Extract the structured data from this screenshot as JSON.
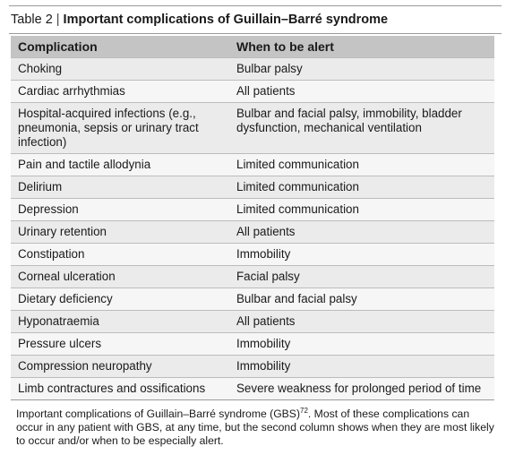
{
  "title": {
    "prefix": "Table 2",
    "separator": "|",
    "main": "Important complications of Guillain–Barré syndrome"
  },
  "table": {
    "headers": [
      "Complication",
      "When to be alert"
    ],
    "rows": [
      [
        "Choking",
        "Bulbar palsy"
      ],
      [
        "Cardiac arrhythmias",
        "All patients"
      ],
      [
        "Hospital-acquired infections (e.g., pneumonia, sepsis or urinary tract infection)",
        "Bulbar and facial palsy, immobility, bladder dysfunction, mechanical ventilation"
      ],
      [
        "Pain and tactile allodynia",
        "Limited communication"
      ],
      [
        "Delirium",
        "Limited communication"
      ],
      [
        "Depression",
        "Limited communication"
      ],
      [
        "Urinary retention",
        "All patients"
      ],
      [
        "Constipation",
        "Immobility"
      ],
      [
        "Corneal ulceration",
        "Facial palsy"
      ],
      [
        "Dietary deficiency",
        "Bulbar and facial palsy"
      ],
      [
        "Hyponatraemia",
        "All patients"
      ],
      [
        "Pressure ulcers",
        "Immobility"
      ],
      [
        "Compression neuropathy",
        "Immobility"
      ],
      [
        "Limb contractures and ossifications",
        "Severe weakness for prolonged period of time"
      ]
    ]
  },
  "caption": {
    "before_ref": "Important complications of Guillain–Barré syndrome (GBS)",
    "ref": "72",
    "after_ref": ". Most of these complications can occur in any patient with GBS, at any time, but the second column shows when they are most likely to occur and/or when to be especially alert."
  }
}
